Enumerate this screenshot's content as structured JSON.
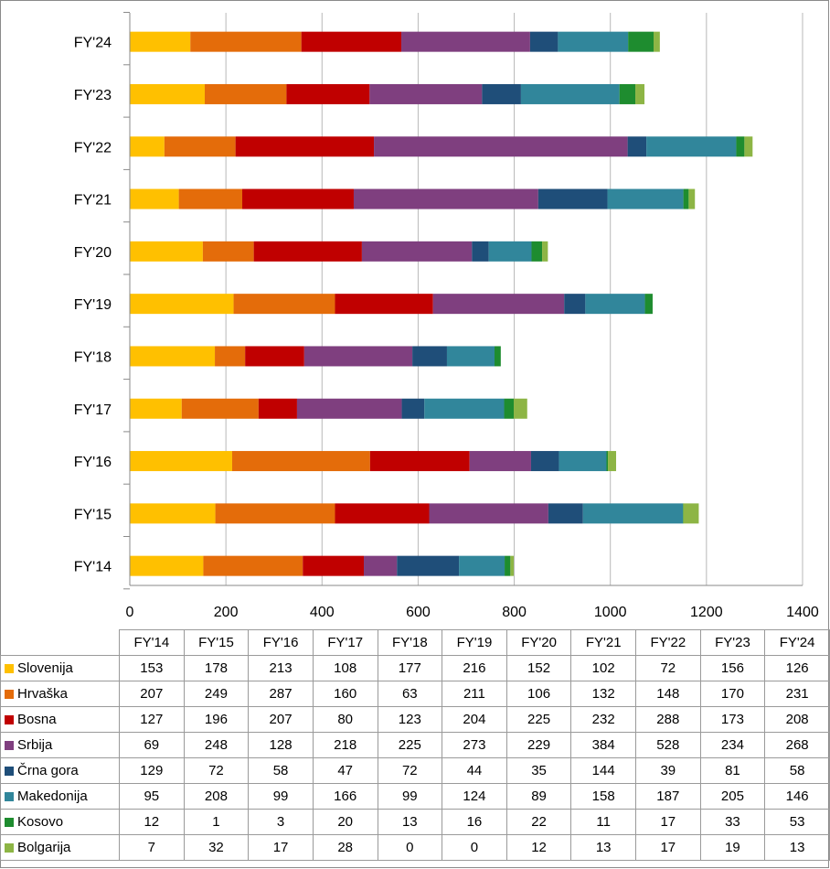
{
  "chart_data": {
    "type": "bar",
    "orientation": "horizontal",
    "stacked": true,
    "categories": [
      "FY'14",
      "FY'15",
      "FY'16",
      "FY'17",
      "FY'18",
      "FY'19",
      "FY'20",
      "FY'21",
      "FY'22",
      "FY'23",
      "FY'24"
    ],
    "xlim": [
      0,
      1400
    ],
    "x_ticks": [
      "0",
      "200",
      "400",
      "600",
      "800",
      "1000",
      "1200",
      "1400"
    ],
    "grid": true,
    "legend_placement": "data-table-below",
    "series": [
      {
        "name": "Slovenija",
        "color": "#FFC000",
        "values": [
          153,
          178,
          213,
          108,
          177,
          216,
          152,
          102,
          72,
          156,
          126
        ]
      },
      {
        "name": "Hrvaška",
        "color": "#E46C0A",
        "values": [
          207,
          249,
          287,
          160,
          63,
          211,
          106,
          132,
          148,
          170,
          231
        ]
      },
      {
        "name": "Bosna",
        "color": "#C00000",
        "values": [
          127,
          196,
          207,
          80,
          123,
          204,
          225,
          232,
          288,
          173,
          208
        ]
      },
      {
        "name": "Srbija",
        "color": "#7F3F7F",
        "values": [
          69,
          248,
          128,
          218,
          225,
          273,
          229,
          384,
          528,
          234,
          268
        ]
      },
      {
        "name": "Črna gora",
        "color": "#1F4E79",
        "values": [
          129,
          72,
          58,
          47,
          72,
          44,
          35,
          144,
          39,
          81,
          58
        ]
      },
      {
        "name": "Makedonija",
        "color": "#31869B",
        "values": [
          95,
          208,
          99,
          166,
          99,
          124,
          89,
          158,
          187,
          205,
          146
        ]
      },
      {
        "name": "Kosovo",
        "color": "#1E8C2F",
        "values": [
          12,
          1,
          3,
          20,
          13,
          16,
          22,
          11,
          17,
          33,
          53
        ]
      },
      {
        "name": "Bolgarija",
        "color": "#8DB545",
        "values": [
          7,
          32,
          17,
          28,
          0,
          0,
          12,
          13,
          17,
          19,
          13
        ]
      }
    ]
  }
}
